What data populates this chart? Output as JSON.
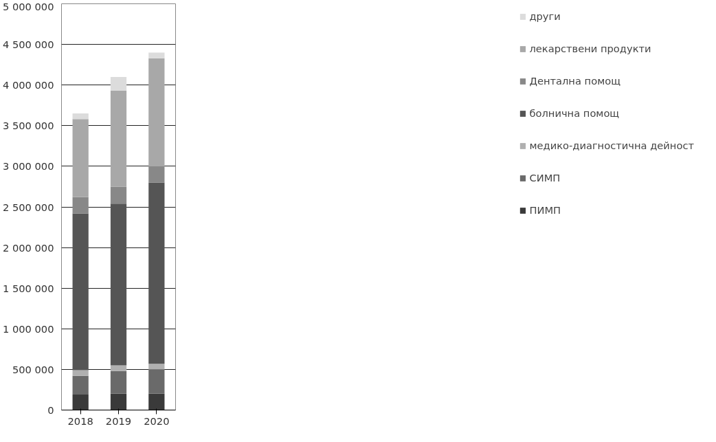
{
  "chart_data": {
    "type": "bar",
    "stacked": true,
    "categories": [
      "2018",
      "2019",
      "2020"
    ],
    "series": [
      {
        "name": "ПИМП",
        "color": "#3a3a3a",
        "values": [
          190000,
          200000,
          200000
        ]
      },
      {
        "name": "СИМП",
        "color": "#6a6a6a",
        "values": [
          230000,
          280000,
          300000
        ]
      },
      {
        "name": "медико-диагностична дейност",
        "color": "#b0b0b0",
        "values": [
          70000,
          70000,
          70000
        ]
      },
      {
        "name": "болнична помощ",
        "color": "#555555",
        "values": [
          1930000,
          1990000,
          2230000
        ]
      },
      {
        "name": "Дентална помощ",
        "color": "#888888",
        "values": [
          200000,
          210000,
          200000
        ]
      },
      {
        "name": "лекарствени продукти",
        "color": "#a8a8a8",
        "values": [
          960000,
          1180000,
          1330000
        ]
      },
      {
        "name": "други",
        "color": "#dcdcdc",
        "values": [
          70000,
          170000,
          70000
        ]
      }
    ],
    "ylim": [
      0,
      5000000
    ],
    "yticks": [
      {
        "value": 0,
        "label": "0"
      },
      {
        "value": 500000,
        "label": "500 000"
      },
      {
        "value": 1000000,
        "label": "1 000 000"
      },
      {
        "value": 1500000,
        "label": "1 500 000"
      },
      {
        "value": 2000000,
        "label": "2 000 000"
      },
      {
        "value": 2500000,
        "label": "2 500 000"
      },
      {
        "value": 3000000,
        "label": "3 000 000"
      },
      {
        "value": 3500000,
        "label": "3 500 000"
      },
      {
        "value": 4000000,
        "label": "4 000 000"
      },
      {
        "value": 4500000,
        "label": "4 500 000"
      },
      {
        "value": 5000000,
        "label": "5 000 000"
      }
    ],
    "grid": "y",
    "legend": "right"
  }
}
